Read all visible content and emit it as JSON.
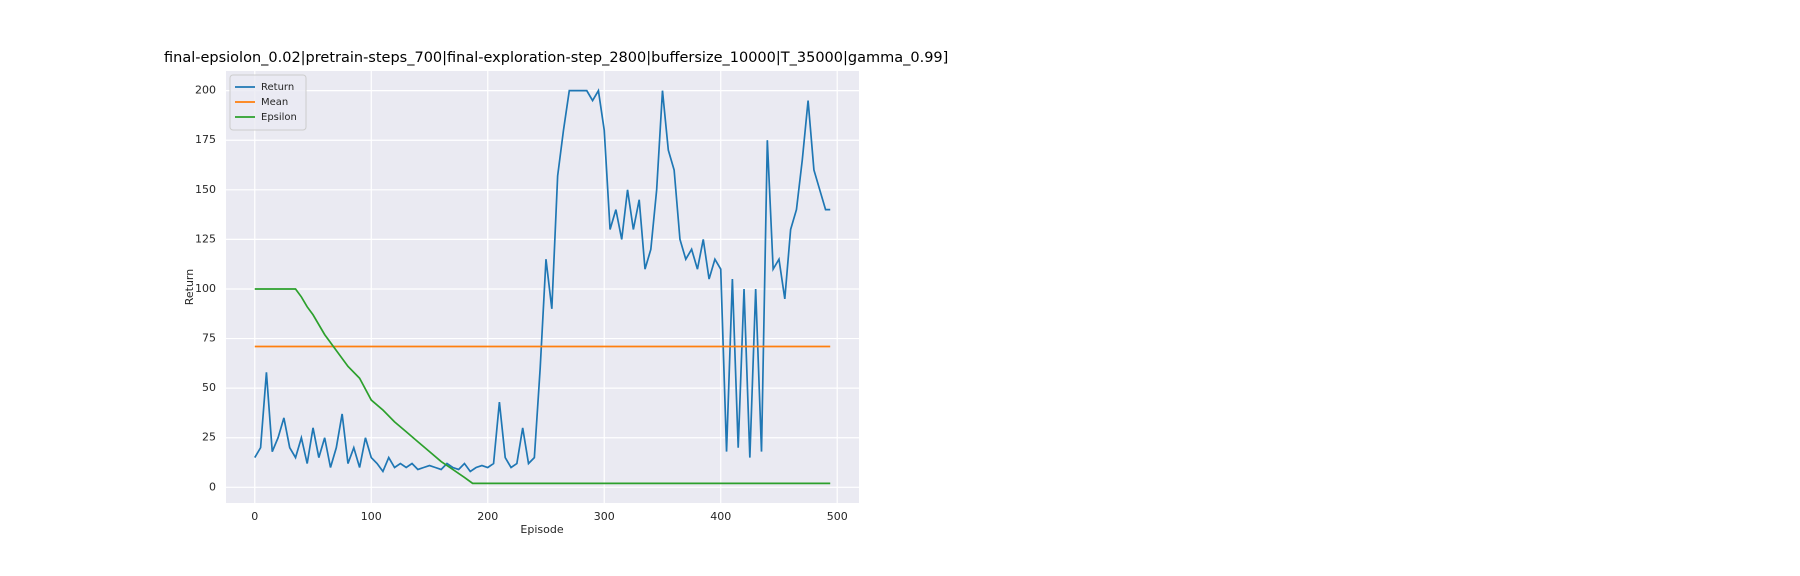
{
  "chart_data": {
    "type": "line",
    "title": "final-epsiolon_0.02|pretrain-steps_700|final-exploration-step_2800|buffersize_10000|T_35000|gamma_0.99]",
    "x_label": "Episode",
    "y_label": "Return",
    "xlim": [
      -24.7,
      518.7
    ],
    "ylim": [
      -7.9,
      209.9
    ],
    "xticks": [
      0,
      100,
      200,
      300,
      400,
      500
    ],
    "yticks": [
      0,
      25,
      50,
      75,
      100,
      125,
      150,
      175,
      200
    ],
    "grid": true,
    "legend": "upper left",
    "series": [
      {
        "name": "Return",
        "color": "#1f77b4",
        "x": [
          0,
          5,
          10,
          15,
          20,
          25,
          30,
          35,
          40,
          45,
          50,
          55,
          60,
          65,
          70,
          75,
          80,
          85,
          90,
          95,
          100,
          105,
          110,
          115,
          120,
          125,
          130,
          135,
          140,
          145,
          150,
          155,
          160,
          165,
          170,
          175,
          180,
          185,
          190,
          195,
          200,
          205,
          210,
          215,
          220,
          225,
          230,
          235,
          240,
          245,
          250,
          255,
          260,
          265,
          270,
          275,
          280,
          285,
          290,
          295,
          300,
          305,
          310,
          315,
          320,
          325,
          330,
          335,
          340,
          345,
          350,
          355,
          360,
          365,
          370,
          375,
          380,
          385,
          390,
          395,
          400,
          405,
          410,
          415,
          420,
          425,
          430,
          435,
          440,
          445,
          450,
          455,
          460,
          465,
          470,
          475,
          480,
          485,
          490,
          494
        ],
        "values": [
          15,
          20,
          58,
          18,
          25,
          35,
          20,
          15,
          25,
          12,
          30,
          15,
          25,
          10,
          20,
          37,
          12,
          20,
          10,
          25,
          15,
          12,
          8,
          15,
          10,
          12,
          10,
          12,
          9,
          10,
          11,
          10,
          9,
          12,
          10,
          9,
          12,
          8,
          10,
          11,
          10,
          12,
          43,
          15,
          10,
          12,
          30,
          12,
          15,
          60,
          115,
          90,
          157,
          180,
          200,
          200,
          200,
          200,
          195,
          200,
          180,
          130,
          140,
          125,
          150,
          130,
          145,
          110,
          120,
          150,
          200,
          170,
          160,
          125,
          115,
          120,
          110,
          125,
          105,
          115,
          110,
          18,
          105,
          20,
          100,
          15,
          100,
          18,
          175,
          110,
          115,
          95,
          130,
          140,
          165,
          195,
          160,
          150,
          140,
          140
        ]
      },
      {
        "name": "Mean",
        "color": "#ff7f0e",
        "x": [
          0,
          494
        ],
        "values": [
          71,
          71
        ]
      },
      {
        "name": "Epsilon",
        "color": "#2ca02c",
        "x": [
          0,
          35,
          40,
          45,
          50,
          60,
          70,
          80,
          90,
          100,
          110,
          120,
          130,
          140,
          150,
          160,
          170,
          180,
          187,
          494
        ],
        "values": [
          100,
          100,
          96,
          91,
          87,
          77,
          69,
          61,
          55,
          44,
          39,
          33,
          28,
          23,
          18,
          13,
          9,
          5,
          2,
          2
        ]
      }
    ]
  }
}
